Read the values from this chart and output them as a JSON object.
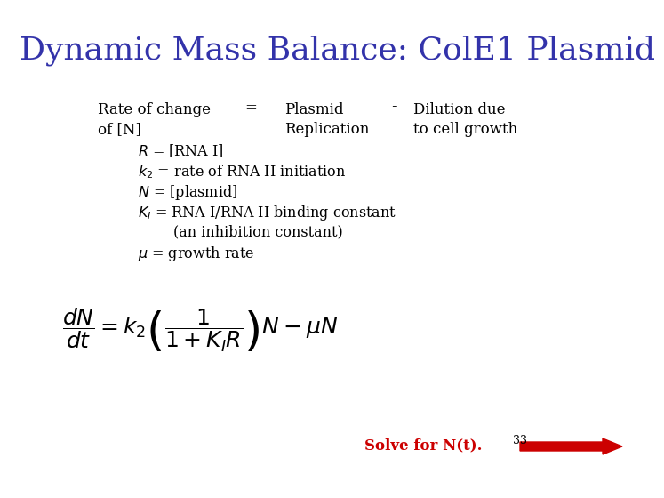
{
  "title": "Dynamic Mass Balance: ColE1 Plasmid",
  "title_color": "#3333AA",
  "title_fontsize": 26,
  "bg_color": "#FFFFFF",
  "red_color": "#CC0000",
  "line1_left": "Rate of change",
  "line1_eq": "=",
  "line1_mid": "Plasmid",
  "line1_minus": "-",
  "line1_right": "Dilution due",
  "line2_left": "of [N]",
  "line2_mid": "Replication",
  "line2_right": "to cell growth",
  "bullet1": "$R$ = [RNA I]",
  "bullet2": "$k_2$ = rate of RNA II initiation",
  "bullet3": "$N$ = [plasmid]",
  "bullet4": "$K_I$ = RNA I/RNA II binding constant",
  "bullet4b": "(an inhibition constant)",
  "bullet5": "$\\mu$ = growth rate",
  "solve_text": "Solve for N(t).",
  "slide_num": "33",
  "text_fs": 12,
  "bullet_fs": 11.5,
  "eq_fs": 18
}
